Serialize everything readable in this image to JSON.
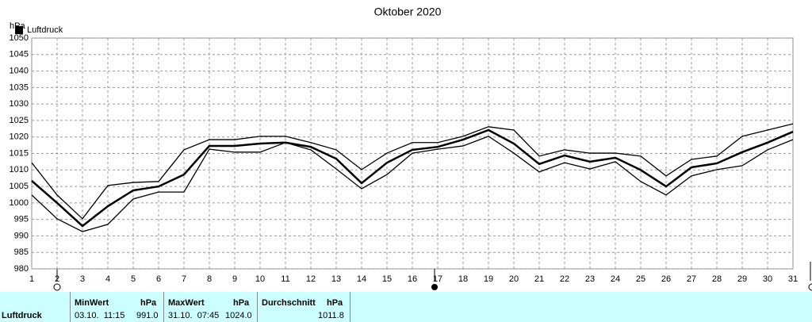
{
  "chart_data": {
    "type": "line",
    "title": "Oktober 2020",
    "y_label": "hPa",
    "x": [
      1,
      2,
      3,
      4,
      5,
      6,
      7,
      8,
      9,
      10,
      11,
      12,
      13,
      14,
      15,
      16,
      17,
      18,
      19,
      20,
      21,
      22,
      23,
      24,
      25,
      26,
      27,
      28,
      29,
      30,
      31
    ],
    "xlim": [
      1,
      31
    ],
    "xticks": [
      1,
      2,
      3,
      4,
      5,
      6,
      7,
      8,
      9,
      10,
      11,
      12,
      13,
      14,
      15,
      16,
      17,
      18,
      19,
      20,
      21,
      22,
      23,
      24,
      25,
      26,
      27,
      28,
      29,
      30,
      31
    ],
    "ylim": [
      980,
      1050
    ],
    "yticks": [
      980,
      985,
      990,
      995,
      1000,
      1005,
      1010,
      1015,
      1020,
      1025,
      1030,
      1035,
      1040,
      1045,
      1050
    ],
    "grid": true,
    "legend": "top-left",
    "series": [
      {
        "name": "Luftdruck",
        "color": "#000000",
        "values": [
          1006.7,
          1000,
          993,
          999,
          1003.8,
          1005,
          1008.6,
          1017.3,
          1017.3,
          1018,
          1018.3,
          1017,
          1013.4,
          1006,
          1012.2,
          1016.1,
          1017,
          1019.2,
          1022.1,
          1018,
          1011.8,
          1014.4,
          1012.5,
          1013.7,
          1010,
          1005,
          1010.8,
          1012,
          1015.4,
          1018.3,
          1021.6
        ]
      },
      {
        "color": "#000000",
        "values": [
          1012.2,
          1002.4,
          995.2,
          1005.3,
          1006.2,
          1006.5,
          1016.1,
          1019.2,
          1019.2,
          1020.2,
          1020.2,
          1018.3,
          1016.1,
          1010.1,
          1015.1,
          1018.3,
          1018.3,
          1020.2,
          1023.1,
          1022.1,
          1014.2,
          1016.1,
          1015.1,
          1015.1,
          1014.2,
          1008.2,
          1013.2,
          1014.2,
          1020.2,
          1022.1,
          1024
        ]
      },
      {
        "color": "#000000",
        "values": [
          1002.4,
          995.2,
          991.3,
          993.5,
          1001.2,
          1003.3,
          1003.3,
          1016.3,
          1015.4,
          1015.4,
          1018.3,
          1016.1,
          1010.3,
          1004.3,
          1008.6,
          1015.1,
          1016.3,
          1017.3,
          1020.2,
          1015.1,
          1009.4,
          1012.2,
          1010.3,
          1012.5,
          1006.5,
          1002.4,
          1008.2,
          1010.1,
          1011.3,
          1016.1,
          1019.2
        ]
      }
    ]
  },
  "summary": {
    "label": "Luftdruck",
    "min": {
      "title": "MinWert",
      "unit": "hPa",
      "time": "03.10.  11:15",
      "value": "991.0"
    },
    "max": {
      "title": "MaxWert",
      "unit": "hPa",
      "time": "31.10.  07:45",
      "value": "1024.0"
    },
    "avg": {
      "title": "Durchschnitt",
      "unit": "hPa",
      "value": "1011.8"
    }
  }
}
